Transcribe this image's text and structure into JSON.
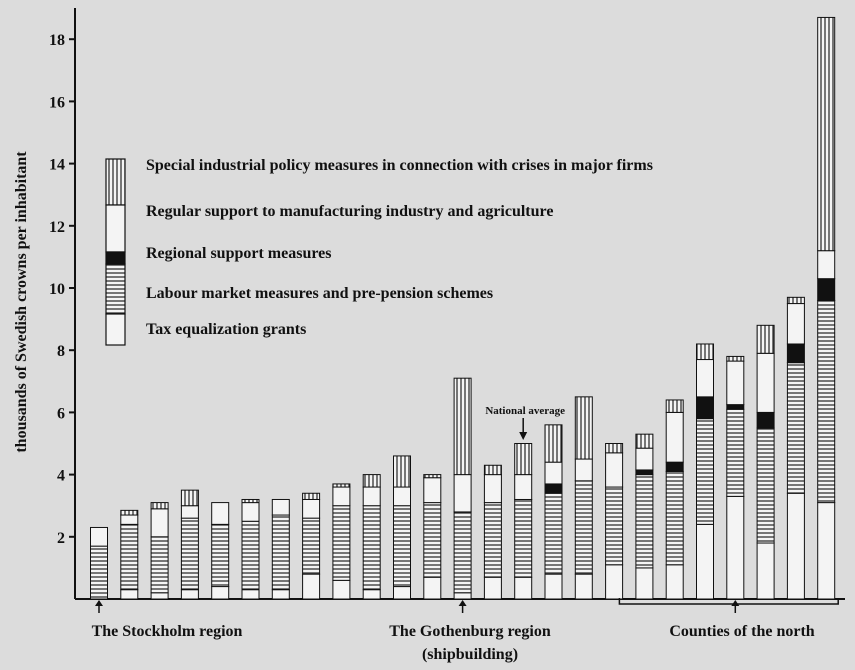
{
  "chart_data": {
    "type": "bar",
    "stacked": true,
    "ylabel": "thousands of Swedish crowns per inhabitant",
    "ylim": [
      0,
      19
    ],
    "yticks": [
      2,
      4,
      6,
      8,
      10,
      12,
      14,
      16,
      18
    ],
    "grid": false,
    "legend_placement": "top-left",
    "series": [
      {
        "key": "tax",
        "name": "Tax equalization grants",
        "pattern": "white",
        "values": [
          0.0,
          0.3,
          0.2,
          0.3,
          0.4,
          0.3,
          0.3,
          0.8,
          0.6,
          0.3,
          0.4,
          0.7,
          0.2,
          0.7,
          0.7,
          0.8,
          0.8,
          1.1,
          1.0,
          1.1,
          2.4,
          3.3,
          1.8,
          3.4,
          3.1
        ]
      },
      {
        "key": "labour",
        "name": "Labour market measures and  pre-pension schemes",
        "pattern": "horizontal",
        "values": [
          1.7,
          2.1,
          1.8,
          2.3,
          2.0,
          2.2,
          2.4,
          1.8,
          2.4,
          2.7,
          2.6,
          2.4,
          2.6,
          2.4,
          2.5,
          2.6,
          3.0,
          2.5,
          3.0,
          3.0,
          3.4,
          2.8,
          3.7,
          4.2,
          6.5
        ]
      },
      {
        "key": "regional",
        "name": "Regional support measures",
        "pattern": "black",
        "values": [
          0.0,
          0.0,
          0.0,
          0.0,
          0.0,
          0.0,
          0.0,
          0.0,
          0.0,
          0.0,
          0.0,
          0.0,
          0.0,
          0.0,
          0.0,
          0.3,
          0.0,
          0.0,
          0.15,
          0.3,
          0.7,
          0.15,
          0.5,
          0.6,
          0.7
        ]
      },
      {
        "key": "regular",
        "name": "Regular support to  manufacturing industry and agriculture",
        "pattern": "white",
        "values": [
          0.6,
          0.3,
          0.9,
          0.4,
          0.7,
          0.6,
          0.5,
          0.6,
          0.6,
          0.6,
          0.6,
          0.8,
          1.2,
          0.9,
          0.8,
          0.7,
          0.7,
          1.1,
          0.7,
          1.6,
          1.2,
          1.4,
          1.9,
          1.3,
          0.9
        ]
      },
      {
        "key": "special",
        "name": "Special industrial policy measures in connection with crises in major firms",
        "pattern": "vertical",
        "values": [
          0.0,
          0.15,
          0.2,
          0.5,
          0.0,
          0.1,
          0.0,
          0.2,
          0.1,
          0.4,
          1.0,
          0.1,
          3.1,
          0.3,
          1.0,
          1.2,
          2.0,
          0.3,
          0.45,
          0.4,
          0.5,
          0.15,
          0.9,
          0.2,
          7.5
        ]
      }
    ],
    "legend_order": [
      "special",
      "regular",
      "regional",
      "labour",
      "tax"
    ],
    "annotations": [
      {
        "text": "National average",
        "bar_index": 14
      }
    ],
    "regions": [
      {
        "label": "The Stockholm region",
        "bar_index": 0
      },
      {
        "label": "The Gothenburg region",
        "label2": "(shipbuilding)",
        "bar_index": 12
      },
      {
        "label": "Counties of the north",
        "bar_index": 21,
        "bracket_from": 18,
        "bracket_to": 24
      }
    ]
  }
}
